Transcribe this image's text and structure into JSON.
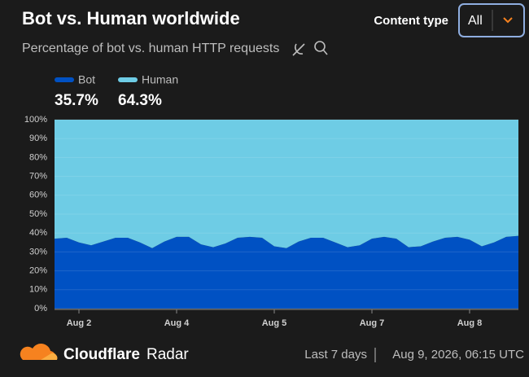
{
  "header": {
    "title": "Bot vs. Human worldwide",
    "subtitle": "Percentage of bot vs. human HTTP requests",
    "filter_label": "Content type",
    "filter_value": "All"
  },
  "chart_data": {
    "type": "area",
    "stacked": true,
    "categories": [
      null,
      null,
      "Aug 2",
      null,
      null,
      null,
      null,
      null,
      null,
      null,
      "Aug 4",
      null,
      null,
      null,
      null,
      null,
      null,
      null,
      "Aug 5",
      null,
      null,
      null,
      null,
      null,
      null,
      null,
      "Aug 7",
      null,
      null,
      null,
      null,
      null,
      null,
      null,
      "Aug 8",
      null,
      null,
      null,
      null
    ],
    "series": [
      {
        "name": "Bot",
        "color": "#0051c3",
        "value": 35.7,
        "value_label": "35.7%",
        "values": [
          37,
          37.5,
          35,
          33.5,
          35.5,
          37.5,
          37.5,
          35,
          32,
          35.5,
          38,
          38,
          34,
          32.5,
          34.5,
          37.5,
          38,
          37.5,
          33,
          32,
          35.5,
          37.5,
          37.5,
          35,
          32.5,
          33.5,
          37,
          38,
          37,
          32.5,
          33,
          35.5,
          37.5,
          38,
          36.5,
          33,
          35,
          38,
          38.5
        ]
      },
      {
        "name": "Human",
        "color": "#6ecce5",
        "value": 64.3,
        "value_label": "64.3%",
        "values": [
          63,
          62.5,
          65,
          66.5,
          64.5,
          62.5,
          62.5,
          65,
          68,
          64.5,
          62,
          62,
          66,
          67.5,
          65.5,
          62.5,
          62,
          62.5,
          67,
          68,
          64.5,
          62.5,
          62.5,
          65,
          67.5,
          66.5,
          63,
          62,
          63,
          67.5,
          67,
          64.5,
          62.5,
          62,
          63.5,
          67,
          65,
          62,
          61.5
        ]
      }
    ],
    "ylim": [
      0,
      100
    ],
    "yticks": [
      {
        "value": 0,
        "label": "0%"
      },
      {
        "value": 10,
        "label": "10%"
      },
      {
        "value": 20,
        "label": "20%"
      },
      {
        "value": 30,
        "label": "30%"
      },
      {
        "value": 40,
        "label": "40%"
      },
      {
        "value": 50,
        "label": "50%"
      },
      {
        "value": 60,
        "label": "60%"
      },
      {
        "value": 70,
        "label": "70%"
      },
      {
        "value": 80,
        "label": "80%"
      },
      {
        "value": 90,
        "label": "90%"
      },
      {
        "value": 100,
        "label": "100%"
      }
    ],
    "grid": true
  },
  "footer": {
    "brand": "Cloudflare",
    "product": "Radar",
    "period": "Last 7 days",
    "timestamp": "Aug 9, 2026, 06:15 UTC"
  }
}
